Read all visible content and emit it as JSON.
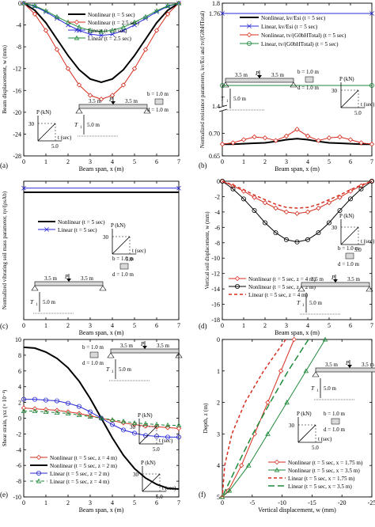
{
  "figure": {
    "panels": [
      {
        "label": "(a)",
        "xlabel": "Beam span, x (m)",
        "ylabel": "Beam displacement, w (mm)"
      },
      {
        "label": "(b)",
        "xlabel": "Beam span, x (m)",
        "ylabel": "Normalized resistance parameters, kv/Esi and tv/(G0bHTotal)"
      },
      {
        "label": "(c)",
        "xlabel": "Beam span, x (m)",
        "ylabel": "Normalized vibrating soil mass parameter, ηv/(ρsAb)"
      },
      {
        "label": "(d)",
        "xlabel": "Beam span, x (m)",
        "ylabel": "Vertical soil displacement, w (mm)"
      },
      {
        "label": "(e)",
        "xlabel": "Beam span, x (m)",
        "ylabel": "Shear strain, γxz (× 10⁻⁴)"
      },
      {
        "label": "(f)",
        "xlabel": "Vertical displacement, w (mm)",
        "ylabel": "Depth, z (m)"
      }
    ],
    "inset": {
      "p_label": "P",
      "p_unit": "P (kN)",
      "t_unit": "t (sec)",
      "load_value": "30",
      "time_value": "5.0",
      "span_a": "3.5 m",
      "span_b": "3.5 m",
      "t1": "T",
      "t1_sub": "1",
      "depth": "5.0 m",
      "b_eq": "b = 1.0 m",
      "d_eq": "d = 1.0 m"
    }
  },
  "chart_data": [
    {
      "type": "line",
      "panel": "a",
      "xlabel": "Beam span, x (m)",
      "ylabel": "Beam displacement, w (mm)",
      "xlim": [
        0,
        7
      ],
      "ylim": [
        -28,
        0
      ],
      "xticks": [
        0,
        1,
        2,
        3,
        4,
        5,
        6,
        7
      ],
      "yticks": [
        0,
        -4,
        -8,
        -12,
        -16,
        -20,
        -24,
        -28
      ],
      "legend_position": "top-left",
      "series": [
        {
          "name": "Nonlinear (t = 5 sec)",
          "color": "#000000",
          "width": 2,
          "marker": "none",
          "x": [
            0,
            0.5,
            1,
            1.5,
            2,
            2.5,
            3,
            3.5,
            4,
            4.5,
            5,
            5.5,
            6,
            6.5,
            7
          ],
          "y": [
            0,
            -1.3,
            -3.6,
            -6.6,
            -9.6,
            -12.2,
            -13.9,
            -14.5,
            -13.9,
            -12.2,
            -9.6,
            -6.6,
            -3.6,
            -1.3,
            0
          ]
        },
        {
          "name": "Nonlinear (t = 2.5 sec)",
          "color": "#d62d1f",
          "width": 1,
          "marker": "diamond",
          "x": [
            0,
            0.5,
            1,
            1.5,
            2,
            2.5,
            3,
            3.5,
            4,
            4.5,
            5,
            5.5,
            6,
            6.5,
            7
          ],
          "y": [
            0,
            -2.0,
            -5.0,
            -8.5,
            -12.0,
            -15.0,
            -16.9,
            -17.6,
            -16.9,
            -15.0,
            -12.0,
            -8.5,
            -5.0,
            -2.0,
            0
          ]
        },
        {
          "name": "Linear (t = 5 sec)",
          "color": "#2a2ad6",
          "width": 1,
          "marker": "x",
          "x": [
            0,
            0.5,
            1,
            1.5,
            2,
            2.5,
            3,
            3.5,
            4,
            4.5,
            5,
            5.5,
            6,
            6.5,
            7
          ],
          "y": [
            0,
            -0.6,
            -1.6,
            -2.8,
            -4.0,
            -5.0,
            -5.7,
            -5.9,
            -5.7,
            -5.0,
            -4.0,
            -2.8,
            -1.6,
            -0.6,
            0
          ]
        },
        {
          "name": "Linear (t = 2.5 sec)",
          "color": "#1e8a3a",
          "width": 1,
          "marker": "triangle",
          "x": [
            0,
            0.5,
            1,
            1.5,
            2,
            2.5,
            3,
            3.5,
            4,
            4.5,
            5,
            5.5,
            6,
            6.5,
            7
          ],
          "y": [
            0,
            -0.5,
            -1.4,
            -2.5,
            -3.5,
            -4.4,
            -5.0,
            -5.2,
            -5.0,
            -4.4,
            -3.5,
            -2.5,
            -1.4,
            -0.5,
            0
          ]
        }
      ]
    },
    {
      "type": "line",
      "panel": "b",
      "xlabel": "Beam span, x (m)",
      "xlim": [
        0,
        7
      ],
      "xticks": [
        0,
        1,
        2,
        3,
        4,
        5,
        6,
        7
      ],
      "axis_break": true,
      "upper_ylim": [
        1.4,
        1.8
      ],
      "upper_yticks": [
        1.8,
        1.76,
        1.4
      ],
      "lower_ylim": [
        0.65,
        0.75
      ],
      "lower_yticks": [
        0.7,
        0.65
      ],
      "legend_position": "top",
      "series": [
        {
          "name": "Nonlinear, kv/Esi (t = 5 sec)",
          "color": "#000000",
          "width": 2,
          "marker": "none",
          "x": [
            0,
            0.5,
            1,
            1.5,
            2,
            2.5,
            3,
            3.5,
            4,
            4.5,
            5,
            5.5,
            6,
            6.5,
            7
          ],
          "y": [
            0.676,
            0.676,
            0.677,
            0.678,
            0.679,
            0.682,
            0.686,
            0.688,
            0.686,
            0.682,
            0.679,
            0.678,
            0.677,
            0.676,
            0.676
          ]
        },
        {
          "name": "Linear, kv/Esi (t = 5 sec)",
          "color": "#2a2ad6",
          "width": 1,
          "marker": "x",
          "x": [
            0,
            7
          ],
          "y": [
            1.76,
            1.76
          ]
        },
        {
          "name": "Nonlinear, tv/(G0bHTotal) (t = 5 sec)",
          "color": "#d62d1f",
          "width": 1,
          "marker": "diamond",
          "x": [
            0,
            0.5,
            1,
            1.5,
            2,
            2.5,
            3,
            3.5,
            4,
            4.5,
            5,
            5.5,
            6,
            6.5,
            7
          ],
          "y": [
            0.676,
            0.679,
            0.686,
            0.692,
            0.69,
            0.684,
            0.694,
            0.709,
            0.694,
            0.684,
            0.69,
            0.692,
            0.686,
            0.679,
            0.676
          ]
        },
        {
          "name": "Linear, tv/(G0bHTotal) (t = 5 sec)",
          "color": "#1e8a3a",
          "width": 1,
          "marker": "circle",
          "x": [
            0,
            7
          ],
          "y": [
            1.48,
            1.48
          ]
        }
      ]
    },
    {
      "type": "line",
      "panel": "c",
      "xlabel": "Beam span, x (m)",
      "xlim": [
        0,
        7
      ],
      "xticks": [
        0,
        1,
        2,
        3,
        4,
        5,
        6,
        7
      ],
      "legend_position": "top-left",
      "series": [
        {
          "name": "Nonlinear (t = 5 sec)",
          "color": "#000000",
          "width": 2,
          "marker": "none",
          "x": [
            0,
            7
          ],
          "y": [
            0.92,
            0.92
          ]
        },
        {
          "name": "Linear (t = 5 sec)",
          "color": "#2a2ad6",
          "width": 1,
          "marker": "x",
          "x": [
            0,
            7
          ],
          "y": [
            0.95,
            0.95
          ]
        }
      ]
    },
    {
      "type": "line",
      "panel": "d",
      "xlabel": "Beam span, x (m)",
      "ylabel": "Vertical soil displacement, w (mm)",
      "xlim": [
        0,
        7
      ],
      "ylim": [
        -18,
        0
      ],
      "xticks": [
        0,
        1,
        2,
        3,
        4,
        5,
        6,
        7
      ],
      "yticks": [
        0,
        -2,
        -4,
        -6,
        -8,
        -10,
        -12,
        -14,
        -16,
        -18
      ],
      "legend_position": "bottom-left",
      "series": [
        {
          "name": "Nonlinear (t = 5 sec, z = 4 m)",
          "color": "#d62d1f",
          "width": 1,
          "marker": "diamond",
          "x": [
            0,
            0.5,
            1,
            1.5,
            2,
            2.5,
            3,
            3.5,
            4,
            4.5,
            5,
            5.5,
            6,
            6.5,
            7
          ],
          "y": [
            0,
            -0.6,
            -1.3,
            -2.1,
            -2.8,
            -3.5,
            -4.0,
            -4.2,
            -4.0,
            -3.5,
            -2.8,
            -2.1,
            -1.3,
            -0.6,
            0
          ]
        },
        {
          "name": "Nonlinear (t = 5 sec, z = 2 m)",
          "color": "#000000",
          "width": 1,
          "marker": "circle",
          "x": [
            0,
            0.5,
            1,
            1.5,
            2,
            2.5,
            3,
            3.5,
            4,
            4.5,
            5,
            5.5,
            6,
            6.5,
            7
          ],
          "y": [
            0,
            -1.0,
            -2.3,
            -3.8,
            -5.4,
            -6.7,
            -7.6,
            -7.9,
            -7.6,
            -6.7,
            -5.4,
            -3.8,
            -2.3,
            -1.0,
            0
          ]
        },
        {
          "name": "Linear (t = 5 sec, z = 4 m)",
          "color": "#d62d1f",
          "width": 1.5,
          "marker": "none",
          "dash": "4,3",
          "x": [
            0,
            0.5,
            1,
            1.5,
            2,
            2.5,
            3,
            3.5,
            4,
            4.5,
            5,
            5.5,
            6,
            6.5,
            7
          ],
          "y": [
            0,
            -0.5,
            -1.1,
            -1.8,
            -2.4,
            -3.0,
            -3.4,
            -3.5,
            -3.4,
            -3.0,
            -2.4,
            -1.8,
            -1.1,
            -0.5,
            0
          ]
        }
      ]
    },
    {
      "type": "line",
      "panel": "e",
      "xlabel": "Beam span, x (m)",
      "ylabel": "Shear strain, γxz (× 10⁻⁴)",
      "xlim": [
        0,
        7
      ],
      "ylim": [
        -10,
        10
      ],
      "xticks": [
        0,
        1,
        2,
        3,
        4,
        5,
        6,
        7
      ],
      "yticks": [
        10,
        8,
        6,
        4,
        2,
        0,
        -2,
        -4,
        -6,
        -8,
        -10
      ],
      "legend_position": "bottom-left",
      "series": [
        {
          "name": "Nonlinear (t = 5 sec, z = 4 m)",
          "color": "#d62d1f",
          "width": 1,
          "marker": "diamond",
          "x": [
            0,
            0.5,
            1,
            1.5,
            2,
            2.5,
            3,
            3.5,
            4,
            4.5,
            5,
            5.5,
            6,
            6.5,
            7
          ],
          "y": [
            1.3,
            1.2,
            1.1,
            1.0,
            0.8,
            0.6,
            0.3,
            0,
            -0.3,
            -0.6,
            -0.8,
            -1.0,
            -1.1,
            -1.2,
            -1.3
          ]
        },
        {
          "name": "Nonlinear (t = 5 sec, z = 2 m)",
          "color": "#000000",
          "width": 2,
          "marker": "none",
          "x": [
            0,
            0.5,
            1,
            1.5,
            2,
            2.5,
            3,
            3.5,
            4,
            4.5,
            5,
            5.5,
            6,
            6.5,
            7
          ],
          "y": [
            9.0,
            8.9,
            8.4,
            7.6,
            6.4,
            4.7,
            2.5,
            0,
            -2.5,
            -4.7,
            -6.4,
            -7.6,
            -8.4,
            -8.9,
            -9.0
          ]
        },
        {
          "name": "Linear (t = 5 sec, z = 2 m)",
          "color": "#2a2ad6",
          "width": 1,
          "marker": "circle",
          "x": [
            0,
            0.5,
            1,
            1.5,
            2,
            2.5,
            3,
            3.5,
            4,
            4.5,
            5,
            5.5,
            6,
            6.5,
            7
          ],
          "y": [
            2.4,
            2.4,
            2.3,
            2.2,
            1.9,
            1.5,
            0.8,
            0,
            -0.8,
            -1.5,
            -1.9,
            -2.2,
            -2.3,
            -2.4,
            -2.4
          ]
        },
        {
          "name": "Linear (t = 5 sec, z = 4 m)",
          "color": "#1e8a3a",
          "width": 1,
          "marker": "triangle",
          "dash": "4,3",
          "x": [
            0,
            0.5,
            1,
            1.5,
            2,
            2.5,
            3,
            3.5,
            4,
            4.5,
            5,
            5.5,
            6,
            6.5,
            7
          ],
          "y": [
            0.9,
            0.9,
            0.8,
            0.7,
            0.6,
            0.4,
            0.2,
            0,
            -0.2,
            -0.4,
            -0.6,
            -0.7,
            -0.8,
            -0.9,
            -0.9
          ]
        }
      ]
    },
    {
      "type": "line",
      "panel": "f",
      "xlabel": "Vertical displacement, w (mm)",
      "ylabel": "Depth, z (m)",
      "xlim": [
        0,
        -25
      ],
      "ylim": [
        5,
        0
      ],
      "xticks": [
        0,
        -5,
        -10,
        -15,
        -20,
        -25
      ],
      "yticks": [
        0,
        1,
        2,
        3,
        4,
        5
      ],
      "legend_position": "bottom-right",
      "series": [
        {
          "name": "Nonlinear (t = 5 sec, x = 1.75 m)",
          "color": "#d62d1f",
          "width": 1,
          "marker": "diamond",
          "x": [
            -12.0,
            -9.8,
            -7.6,
            -5.4,
            -3.2,
            -1.0,
            0
          ],
          "y": [
            0,
            1.0,
            2.0,
            3.0,
            4.0,
            4.8,
            5.0
          ]
        },
        {
          "name": "Nonlinear (t = 5 sec, x = 3.5 m)",
          "color": "#1e8a3a",
          "width": 1,
          "marker": "triangle",
          "x": [
            -17.2,
            -14.0,
            -10.8,
            -7.6,
            -4.4,
            -1.2,
            0
          ],
          "y": [
            0,
            1.0,
            2.0,
            3.0,
            4.0,
            4.8,
            5.0
          ]
        },
        {
          "name": "Linear (t = 5 sec, x = 1.75 m)",
          "color": "#d62d1f",
          "width": 1.5,
          "marker": "none",
          "dash": "4,3",
          "x": [
            -10.6,
            -6.9,
            -3.8,
            -1.6,
            -0.4,
            0
          ],
          "y": [
            0,
            1.0,
            2.0,
            3.0,
            4.0,
            5.0
          ]
        },
        {
          "name": "Linear (t = 5 sec, x = 3.5 m)",
          "color": "#1e8a3a",
          "width": 1.5,
          "marker": "none",
          "dash": "8,4",
          "x": [
            -14.4,
            -11.0,
            -8.0,
            -5.1,
            -2.5,
            0
          ],
          "y": [
            0,
            1.0,
            2.0,
            3.0,
            4.0,
            5.0
          ]
        }
      ]
    }
  ]
}
